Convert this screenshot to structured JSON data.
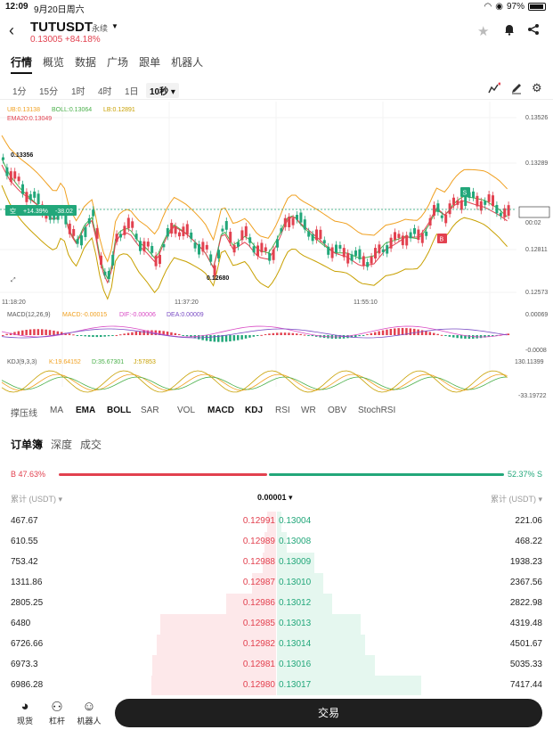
{
  "status_bar": {
    "time": "12:09",
    "date": "9月20日周六",
    "battery": "97%"
  },
  "header": {
    "symbol": "TUTUSDT",
    "contract": "永续",
    "price_change": "0.13005 +84.18%",
    "icons": [
      "back-icon",
      "star-icon",
      "bell-icon",
      "share-icon"
    ]
  },
  "nav_tabs": [
    "行情",
    "概览",
    "数据",
    "广场",
    "跟单",
    "机器人"
  ],
  "timeframes": [
    "1分",
    "15分",
    "1时",
    "4时",
    "1日",
    "10秒"
  ],
  "active_timeframe": "10秒",
  "chart": {
    "boll_legend": {
      "ub": "UB:0.13138",
      "boll": "BOLL:0.13064",
      "lb": "LB:0.12891"
    },
    "ema_legend": "EMA20:0.13049",
    "y_labels": [
      "0.13526",
      "0.13289",
      "0.13005",
      "00:02",
      "0.12811",
      "0.12573"
    ],
    "x_labels": [
      "11:18:20",
      "11:37:20",
      "11:55:10"
    ],
    "annotations": {
      "high": "0.13356",
      "low": "0.12680",
      "position": "空",
      "position_pct": "+14.39%",
      "position_pnl": "-38.02",
      "buy_marker": "B",
      "sell_marker": "S"
    },
    "macd_legend": {
      "name": "MACD(12,26,9)",
      "macd": "MACD:-0.00015",
      "dif": "DIF:-0.00006",
      "dea": "DEA:0.00009"
    },
    "macd_y": [
      "0.00069",
      "-0.0008"
    ],
    "kdj_legend": {
      "name": "KDJ(9,3,3)",
      "k": "K:19.64152",
      "d": "D:35.67301",
      "j": "J:57853"
    },
    "kdj_y": [
      "130.11399",
      "-33.19722"
    ],
    "colors": {
      "up": "#22a77a",
      "down": "#e2414f",
      "ub": "#f0a020",
      "boll": "#4ab04a",
      "lb": "#c8a000",
      "ema": "#e2414f"
    }
  },
  "indicator_tabs": [
    "撑压线",
    "MA",
    "EMA",
    "BOLL",
    "SAR",
    "VOL",
    "MACD",
    "KDJ",
    "RSI",
    "WR",
    "OBV",
    "StochRSI"
  ],
  "orderbook": {
    "tabs": [
      "订单簿",
      "深度",
      "成交"
    ],
    "buy_ratio": "B 47.63%",
    "sell_ratio": "52.37% S",
    "head_left": "累计 (USDT) ▾",
    "precision": "0.00001",
    "head_right": "累计 (USDT) ▾",
    "rows": [
      {
        "cum_bid": "467.67",
        "bid": "0.12991",
        "ask": "0.13004",
        "cum_ask": "221.06",
        "bid_depth": 0.07,
        "ask_depth": 0.03
      },
      {
        "cum_bid": "610.55",
        "bid": "0.12989",
        "ask": "0.13008",
        "cum_ask": "468.22",
        "bid_depth": 0.09,
        "ask_depth": 0.07
      },
      {
        "cum_bid": "753.42",
        "bid": "0.12988",
        "ask": "0.13009",
        "cum_ask": "1938.23",
        "bid_depth": 0.11,
        "ask_depth": 0.26
      },
      {
        "cum_bid": "1311.86",
        "bid": "0.12987",
        "ask": "0.13010",
        "cum_ask": "2367.56",
        "bid_depth": 0.19,
        "ask_depth": 0.32
      },
      {
        "cum_bid": "2805.25",
        "bid": "0.12986",
        "ask": "0.13012",
        "cum_ask": "2822.98",
        "bid_depth": 0.4,
        "ask_depth": 0.38
      },
      {
        "cum_bid": "6480",
        "bid": "0.12985",
        "ask": "0.13013",
        "cum_ask": "4319.48",
        "bid_depth": 0.93,
        "ask_depth": 0.58
      },
      {
        "cum_bid": "6726.66",
        "bid": "0.12982",
        "ask": "0.13014",
        "cum_ask": "4501.67",
        "bid_depth": 0.96,
        "ask_depth": 0.61
      },
      {
        "cum_bid": "6973.3",
        "bid": "0.12981",
        "ask": "0.13016",
        "cum_ask": "5035.33",
        "bid_depth": 0.99,
        "ask_depth": 0.68
      },
      {
        "cum_bid": "6986.28",
        "bid": "0.12980",
        "ask": "0.13017",
        "cum_ask": "7417.44",
        "bid_depth": 1.0,
        "ask_depth": 1.0
      }
    ]
  },
  "bottom_nav": [
    {
      "label": "现货",
      "icon": "spot-icon"
    },
    {
      "label": "杠杆",
      "icon": "leverage-icon"
    },
    {
      "label": "机器人",
      "icon": "robot-icon"
    }
  ],
  "trade_button": "交易"
}
